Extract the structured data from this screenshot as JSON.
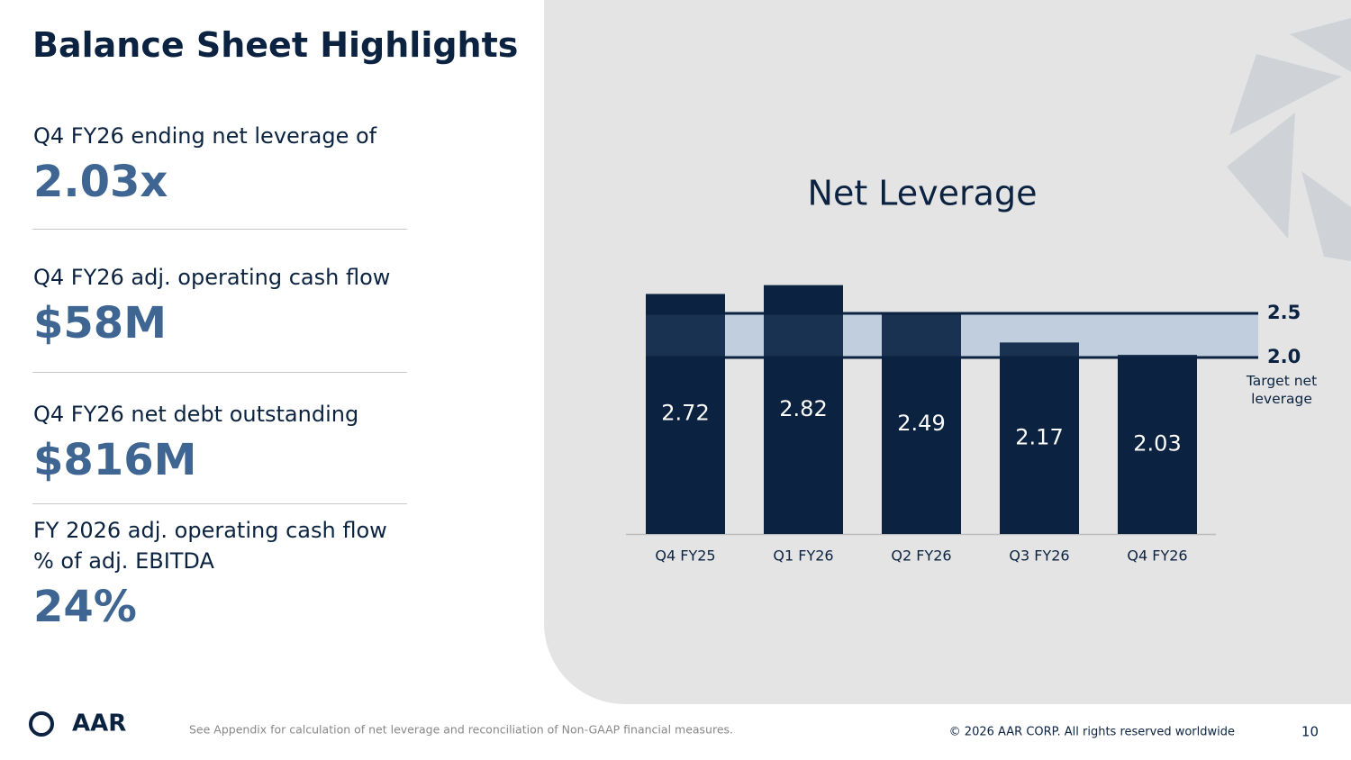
{
  "header": {
    "title": "Balance Sheet Highlights"
  },
  "highlights": [
    {
      "label": "Q4 FY26 ending net leverage of",
      "value": "2.03x"
    },
    {
      "label": "Q4 FY26 adj. operating cash flow",
      "value": "$58M"
    },
    {
      "label": "Q4 FY26 net debt outstanding",
      "value": "$816M"
    },
    {
      "label": "FY 2026 adj. operating cash flow % of adj. EBITDA",
      "value": "24%"
    }
  ],
  "chart_data": {
    "type": "bar",
    "title": "Net Leverage",
    "categories": [
      "Q4 FY25",
      "Q1 FY26",
      "Q2 FY26",
      "Q3 FY26",
      "Q4 FY26"
    ],
    "values": [
      2.72,
      2.82,
      2.49,
      2.17,
      2.03
    ],
    "color": "#0b2340",
    "ylim": [
      0,
      3
    ],
    "reference_lines": [
      {
        "value": 2.5,
        "label": "2.5"
      },
      {
        "value": 2,
        "label": "2.0"
      }
    ],
    "band_label": "Target net leverage"
  },
  "footer": {
    "logo": "AAR",
    "note": "See Appendix for calculation of net leverage and reconciliation of Non-GAAP financial measures.",
    "copyright": "© 2026 AAR CORP. All rights reserved worldwide",
    "page": "10"
  }
}
